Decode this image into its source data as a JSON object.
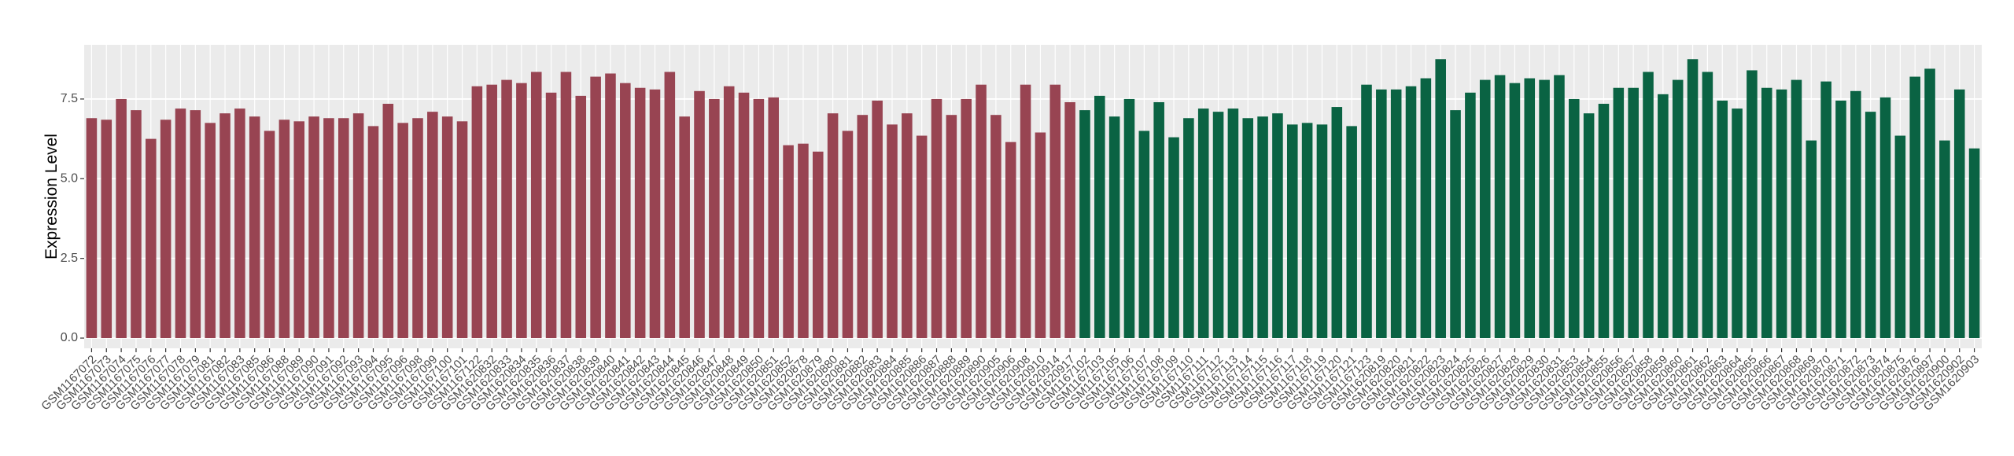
{
  "chart_data": {
    "type": "bar",
    "y_label": "Expression Level",
    "categories": [
      "GSM1167072",
      "GSM1167073",
      "GSM1167074",
      "GSM1167075",
      "GSM1167076",
      "GSM1167077",
      "GSM1167078",
      "GSM1167079",
      "GSM1167081",
      "GSM1167082",
      "GSM1167083",
      "GSM1167085",
      "GSM1167086",
      "GSM1167088",
      "GSM1167089",
      "GSM1167090",
      "GSM1167091",
      "GSM1167092",
      "GSM1167093",
      "GSM1167094",
      "GSM1167095",
      "GSM1167096",
      "GSM1167098",
      "GSM1167099",
      "GSM1167100",
      "GSM1167101",
      "GSM1167122",
      "GSM1620832",
      "GSM1620833",
      "GSM1620834",
      "GSM1620835",
      "GSM1620836",
      "GSM1620837",
      "GSM1620838",
      "GSM1620839",
      "GSM1620840",
      "GSM1620841",
      "GSM1620842",
      "GSM1620843",
      "GSM1620844",
      "GSM1620845",
      "GSM1620846",
      "GSM1620847",
      "GSM1620848",
      "GSM1620849",
      "GSM1620850",
      "GSM1620851",
      "GSM1620852",
      "GSM1620878",
      "GSM1620879",
      "GSM1620880",
      "GSM1620881",
      "GSM1620882",
      "GSM1620883",
      "GSM1620884",
      "GSM1620885",
      "GSM1620886",
      "GSM1620887",
      "GSM1620888",
      "GSM1620889",
      "GSM1620890",
      "GSM1620905",
      "GSM1620906",
      "GSM1620908",
      "GSM1620910",
      "GSM1620914",
      "GSM1620917",
      "GSM1167102",
      "GSM1167103",
      "GSM1167105",
      "GSM1167106",
      "GSM1167107",
      "GSM1167108",
      "GSM1167109",
      "GSM1167110",
      "GSM1167111",
      "GSM1167112",
      "GSM1167113",
      "GSM1167114",
      "GSM1167115",
      "GSM1167116",
      "GSM1167117",
      "GSM1167118",
      "GSM1167119",
      "GSM1167120",
      "GSM1167121",
      "GSM1167123",
      "GSM1620819",
      "GSM1620820",
      "GSM1620821",
      "GSM1620822",
      "GSM1620823",
      "GSM1620824",
      "GSM1620825",
      "GSM1620826",
      "GSM1620827",
      "GSM1620828",
      "GSM1620829",
      "GSM1620830",
      "GSM1620831",
      "GSM1620853",
      "GSM1620854",
      "GSM1620855",
      "GSM1620856",
      "GSM1620857",
      "GSM1620858",
      "GSM1620859",
      "GSM1620860",
      "GSM1620861",
      "GSM1620862",
      "GSM1620863",
      "GSM1620864",
      "GSM1620865",
      "GSM1620866",
      "GSM1620867",
      "GSM1620868",
      "GSM1620869",
      "GSM1620870",
      "GSM1620871",
      "GSM1620872",
      "GSM1620873",
      "GSM1620874",
      "GSM1620875",
      "GSM1620876",
      "GSM1620897",
      "GSM1620900",
      "GSM1620902",
      "GSM1620903"
    ],
    "series": [
      {
        "color": "#984452",
        "values": [
          6.9,
          6.85,
          7.5,
          7.15,
          6.25,
          6.85,
          7.2,
          7.15,
          6.75,
          7.05,
          7.2,
          6.95,
          6.5,
          6.85,
          6.8,
          6.95,
          6.9,
          6.9,
          7.05,
          6.65,
          7.35,
          6.75,
          6.9,
          7.1,
          6.95,
          6.8,
          7.9,
          7.95,
          8.1,
          8.0,
          8.35,
          7.7,
          8.35,
          7.6,
          8.2,
          8.3,
          8.0,
          7.85,
          7.8,
          8.35,
          6.95,
          7.75,
          7.5,
          7.9,
          7.7,
          7.5,
          7.55,
          6.05,
          6.1,
          5.85,
          7.05,
          6.5,
          7.0,
          7.45,
          6.7,
          7.05,
          6.35,
          7.5,
          7.0,
          7.5,
          7.95,
          7.0,
          6.15,
          7.95,
          6.45,
          7.95,
          7.4,
          null,
          null,
          null,
          null,
          null,
          null,
          null,
          null,
          null,
          null,
          null,
          null,
          null,
          null,
          null,
          null,
          null,
          null,
          null,
          null,
          null,
          null,
          null,
          null,
          null,
          null,
          null,
          null,
          null,
          null,
          null,
          null,
          null,
          null,
          null,
          null,
          null,
          null,
          null,
          null,
          null,
          null,
          null,
          null,
          null,
          null,
          null,
          null,
          null,
          null,
          null,
          null,
          null,
          null,
          null,
          null,
          null,
          null,
          null,
          null,
          null
        ]
      },
      {
        "color": "#0a6343",
        "values": [
          null,
          null,
          null,
          null,
          null,
          null,
          null,
          null,
          null,
          null,
          null,
          null,
          null,
          null,
          null,
          null,
          null,
          null,
          null,
          null,
          null,
          null,
          null,
          null,
          null,
          null,
          null,
          null,
          null,
          null,
          null,
          null,
          null,
          null,
          null,
          null,
          null,
          null,
          null,
          null,
          null,
          null,
          null,
          null,
          null,
          null,
          null,
          null,
          null,
          null,
          null,
          null,
          null,
          null,
          null,
          null,
          null,
          null,
          null,
          null,
          null,
          null,
          null,
          null,
          null,
          null,
          null,
          7.15,
          7.6,
          6.95,
          7.5,
          6.5,
          7.4,
          6.3,
          6.9,
          7.2,
          7.1,
          7.2,
          6.9,
          6.95,
          7.05,
          6.7,
          6.75,
          6.7,
          7.25,
          6.65,
          7.95,
          7.8,
          7.8,
          7.9,
          8.15,
          8.75,
          7.15,
          7.7,
          8.1,
          8.25,
          8.0,
          8.15,
          8.1,
          8.25,
          7.5,
          7.05,
          7.35,
          7.85,
          7.85,
          8.35,
          7.65,
          8.1,
          8.75,
          8.35,
          7.45,
          7.2,
          8.4,
          7.85,
          7.8,
          8.1,
          6.2,
          8.05,
          7.45,
          7.75,
          7.1,
          7.55,
          6.35,
          8.2,
          8.45,
          6.2,
          7.8,
          5.95
        ]
      }
    ],
    "ylim": [
      -0.32,
      9.2
    ],
    "yticks": [
      {
        "value": 0,
        "label": "0.0"
      },
      {
        "value": 2.5,
        "label": "2.5"
      },
      {
        "value": 5,
        "label": "5.0"
      },
      {
        "value": 7.5,
        "label": "7.5"
      }
    ],
    "grid": true
  }
}
